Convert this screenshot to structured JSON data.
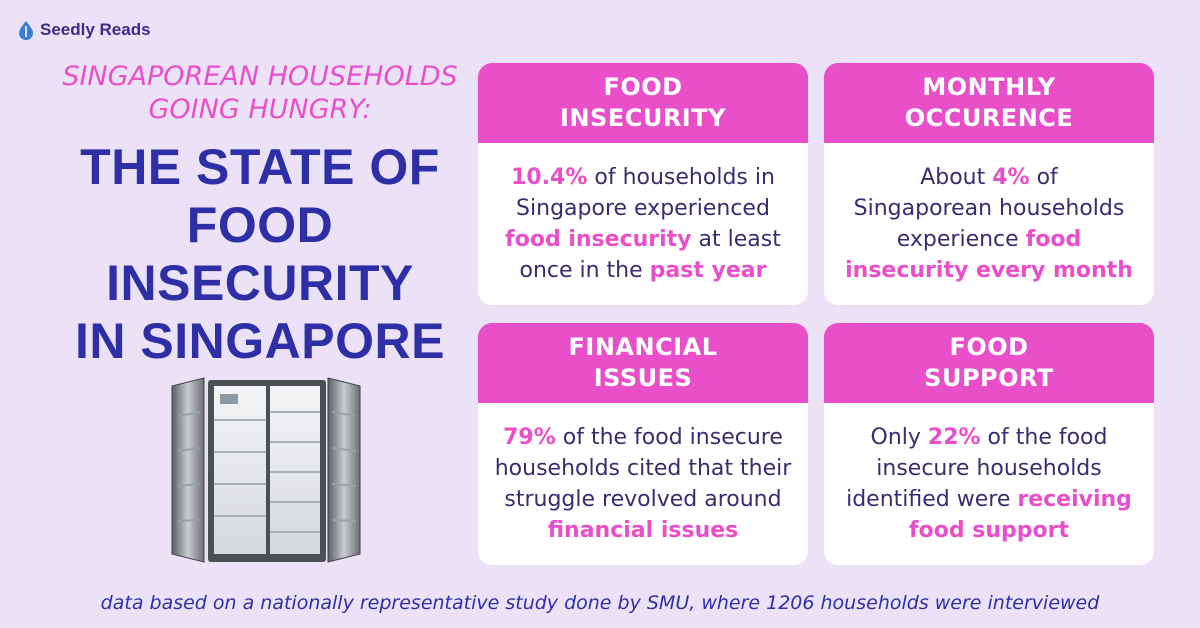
{
  "brand": {
    "name": "Seedly Reads",
    "accent": "#e94fc9",
    "navy": "#2e2fa6",
    "background": "#ece2f7"
  },
  "kicker": {
    "line1": "SINGAPOREAN HOUSEHOLDS",
    "line2": "GOING HUNGRY:"
  },
  "headline": {
    "line1": "THE STATE OF",
    "line2": "FOOD",
    "line3": "INSECURITY",
    "line4": "IN SINGAPORE"
  },
  "cards": [
    {
      "title1": "FOOD",
      "title2": "INSECURITY",
      "l1a": "10.4%",
      "l1b": " of households in",
      "l2": "Singapore experienced",
      "l3a": "food insecurity",
      "l3b": " at least",
      "l4a": "once in the ",
      "l4b": "past year"
    },
    {
      "title1": "MONTHLY",
      "title2": "OCCURENCE",
      "l1a": "About ",
      "l1b": "4%",
      "l1c": " of",
      "l2": "Singaporean households",
      "l3a": "experience ",
      "l3b": "food",
      "l4": "insecurity every month"
    },
    {
      "title1": "FINANCIAL",
      "title2": "ISSUES",
      "l1a": "79%",
      "l1b": " of the food insecure",
      "l2": "households cited that their",
      "l3": "struggle revolved around",
      "l4": "financial issues"
    },
    {
      "title1": "FOOD",
      "title2": "SUPPORT",
      "l1a": "Only ",
      "l1b": "22%",
      "l1c": " of the food",
      "l2": "insecure households",
      "l3a": "identified were ",
      "l3b": "receiving",
      "l4": "food support"
    }
  ],
  "footer": "data based on a nationally representative study done by SMU, where 1206 households were interviewed",
  "icons": {
    "logo": "seed-drop-icon",
    "illustration": "fridge-illustration"
  }
}
